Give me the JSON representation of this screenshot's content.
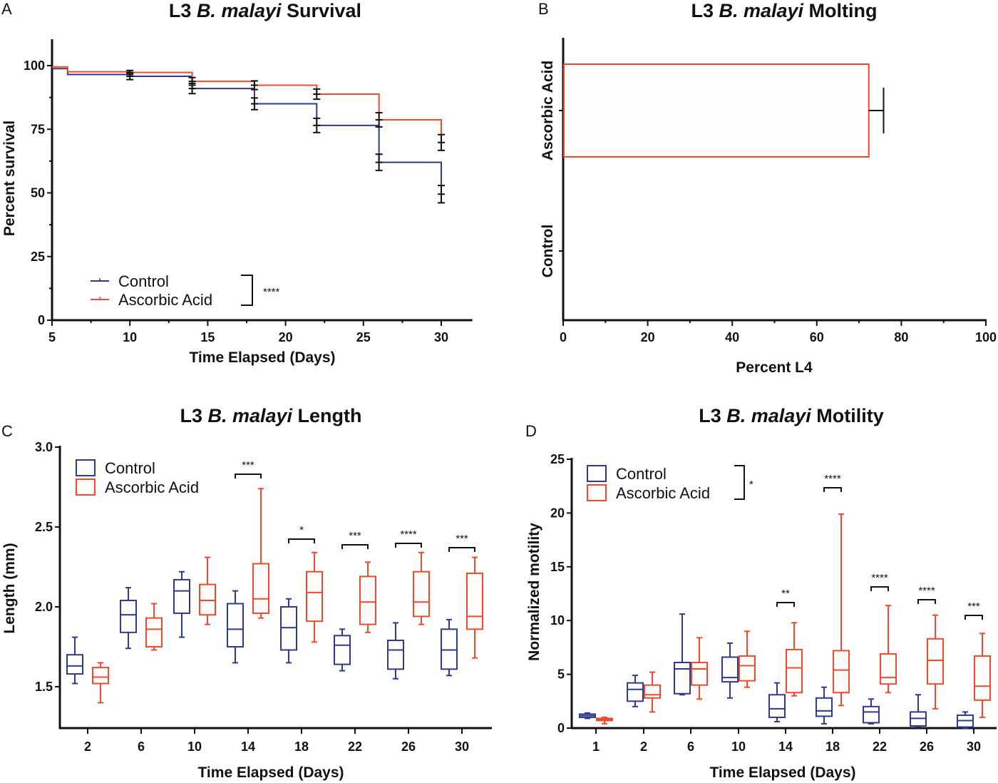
{
  "colors": {
    "control": "#2e3a8c",
    "ascorbic": "#f04a2c",
    "axis": "#111111",
    "error": "#111111"
  },
  "chart_data": [
    {
      "panel": "A",
      "type": "line",
      "title_parts": [
        "L3 ",
        "B. malayi",
        " Survival"
      ],
      "xlabel": "Time Elapsed (Days)",
      "ylabel": "Percent survival",
      "xlim": [
        5,
        32
      ],
      "ylim": [
        0,
        110
      ],
      "xticks": [
        5,
        10,
        15,
        20,
        25,
        30
      ],
      "yticks": [
        0,
        25,
        50,
        75,
        100
      ],
      "legend": {
        "position": "bottom-left",
        "entries": [
          "Control",
          "Ascorbic Acid"
        ],
        "significance": "****"
      },
      "series": [
        {
          "name": "Control",
          "step": true,
          "x": [
            5,
            6,
            10,
            14,
            18,
            22,
            26,
            30
          ],
          "y": [
            98.8,
            96.5,
            95.8,
            91.0,
            85.0,
            76.5,
            62.0,
            49.5
          ],
          "error": [
            null,
            null,
            1.3,
            2.0,
            2.3,
            2.8,
            3.2,
            3.4
          ]
        },
        {
          "name": "Ascorbic Acid",
          "step": true,
          "x": [
            5,
            6,
            10,
            14,
            18,
            22,
            26,
            30
          ],
          "y": [
            99.5,
            97.6,
            97.3,
            93.8,
            92.3,
            88.8,
            78.7,
            69.8
          ],
          "error": [
            null,
            null,
            0.8,
            1.5,
            1.7,
            2.0,
            2.8,
            3.1
          ]
        }
      ]
    },
    {
      "panel": "B",
      "type": "bar",
      "orientation": "horizontal",
      "title_parts": [
        "L3 ",
        "B. malayi",
        " Molting"
      ],
      "xlabel": "Percent L4",
      "ylabel": "",
      "xlim": [
        0,
        100
      ],
      "xticks": [
        0,
        20,
        40,
        60,
        80,
        100
      ],
      "categories": [
        "Ascorbic Acid",
        "Control"
      ],
      "values": [
        72.3,
        0
      ],
      "errors": [
        3.5,
        0
      ]
    },
    {
      "panel": "C",
      "type": "box",
      "title_parts": [
        "L3 ",
        "B. malayi",
        " Length"
      ],
      "xlabel": "Time Elapsed (Days)",
      "ylabel": "Length (mm)",
      "ylim": [
        1.24,
        3.0
      ],
      "yticks": [
        "1.5",
        "2.0",
        "2.5",
        "3.0"
      ],
      "categories": [
        "2",
        "6",
        "10",
        "14",
        "18",
        "22",
        "26",
        "30"
      ],
      "legend": {
        "position": "top-left",
        "entries": [
          "Control",
          "Ascorbic Acid"
        ]
      },
      "significance": [
        "",
        "",
        "",
        "***",
        "*",
        "***",
        "****",
        "***"
      ],
      "series": [
        {
          "name": "Control",
          "boxes": [
            {
              "min": 1.52,
              "q1": 1.58,
              "median": 1.63,
              "q3": 1.7,
              "max": 1.81
            },
            {
              "min": 1.74,
              "q1": 1.84,
              "median": 1.95,
              "q3": 2.04,
              "max": 2.12
            },
            {
              "min": 1.81,
              "q1": 1.96,
              "median": 2.1,
              "q3": 2.17,
              "max": 2.22
            },
            {
              "min": 1.65,
              "q1": 1.75,
              "median": 1.86,
              "q3": 2.02,
              "max": 2.1
            },
            {
              "min": 1.65,
              "q1": 1.73,
              "median": 1.87,
              "q3": 2.0,
              "max": 2.05
            },
            {
              "min": 1.6,
              "q1": 1.64,
              "median": 1.76,
              "q3": 1.82,
              "max": 1.86
            },
            {
              "min": 1.55,
              "q1": 1.61,
              "median": 1.73,
              "q3": 1.79,
              "max": 1.9
            },
            {
              "min": 1.57,
              "q1": 1.61,
              "median": 1.73,
              "q3": 1.86,
              "max": 1.92
            }
          ]
        },
        {
          "name": "Ascorbic Acid",
          "boxes": [
            {
              "min": 1.4,
              "q1": 1.52,
              "median": 1.56,
              "q3": 1.62,
              "max": 1.65
            },
            {
              "min": 1.73,
              "q1": 1.75,
              "median": 1.86,
              "q3": 1.93,
              "max": 2.02
            },
            {
              "min": 1.89,
              "q1": 1.95,
              "median": 2.04,
              "q3": 2.14,
              "max": 2.31
            },
            {
              "min": 1.93,
              "q1": 1.96,
              "median": 2.05,
              "q3": 2.27,
              "max": 2.74
            },
            {
              "min": 1.78,
              "q1": 1.91,
              "median": 2.09,
              "q3": 2.22,
              "max": 2.34
            },
            {
              "min": 1.84,
              "q1": 1.89,
              "median": 2.03,
              "q3": 2.19,
              "max": 2.28
            },
            {
              "min": 1.89,
              "q1": 1.94,
              "median": 2.03,
              "q3": 2.22,
              "max": 2.34
            },
            {
              "min": 1.68,
              "q1": 1.86,
              "median": 1.94,
              "q3": 2.21,
              "max": 2.31
            }
          ]
        }
      ]
    },
    {
      "panel": "D",
      "type": "box",
      "title_parts": [
        "L3 ",
        "B. malayi",
        " Motility"
      ],
      "xlabel": "Time Elapsed (Days)",
      "ylabel": "Normalized motility",
      "ylim": [
        0,
        25
      ],
      "yticks": [
        "0",
        "5",
        "10",
        "15",
        "20",
        "25"
      ],
      "categories": [
        "1",
        "2",
        "6",
        "10",
        "14",
        "18",
        "22",
        "26",
        "30"
      ],
      "legend": {
        "position": "top-left",
        "entries": [
          "Control",
          "Ascorbic Acid"
        ],
        "significance": "*"
      },
      "significance": [
        "",
        "",
        "",
        "",
        "**",
        "****",
        "****",
        "****",
        "***"
      ],
      "series": [
        {
          "name": "Control",
          "boxes": [
            {
              "min": 0.9,
              "q1": 1.0,
              "median": 1.15,
              "q3": 1.3,
              "max": 1.4
            },
            {
              "min": 2.0,
              "q1": 2.5,
              "median": 3.6,
              "q3": 4.2,
              "max": 4.9
            },
            {
              "min": 3.1,
              "q1": 3.2,
              "median": 5.5,
              "q3": 6.1,
              "max": 10.6
            },
            {
              "min": 2.8,
              "q1": 4.3,
              "median": 4.7,
              "q3": 6.6,
              "max": 7.9
            },
            {
              "min": 0.6,
              "q1": 1.0,
              "median": 1.8,
              "q3": 3.1,
              "max": 4.2
            },
            {
              "min": 0.4,
              "q1": 1.1,
              "median": 1.6,
              "q3": 2.8,
              "max": 3.8
            },
            {
              "min": 0.4,
              "q1": 0.5,
              "median": 1.5,
              "q3": 2.0,
              "max": 2.7
            },
            {
              "min": 0.1,
              "q1": 0.2,
              "median": 0.9,
              "q3": 1.5,
              "max": 3.1
            },
            {
              "min": 0.0,
              "q1": 0.1,
              "median": 0.7,
              "q3": 1.2,
              "max": 1.5
            }
          ]
        },
        {
          "name": "Ascorbic Acid",
          "boxes": [
            {
              "min": 0.4,
              "q1": 0.7,
              "median": 0.8,
              "q3": 0.9,
              "max": 1.0
            },
            {
              "min": 1.5,
              "q1": 2.8,
              "median": 3.1,
              "q3": 4.0,
              "max": 5.2
            },
            {
              "min": 2.7,
              "q1": 4.0,
              "median": 5.5,
              "q3": 6.1,
              "max": 8.4
            },
            {
              "min": 3.8,
              "q1": 4.4,
              "median": 5.8,
              "q3": 6.7,
              "max": 9.0
            },
            {
              "min": 3.0,
              "q1": 3.3,
              "median": 5.6,
              "q3": 7.3,
              "max": 9.8
            },
            {
              "min": 2.1,
              "q1": 3.3,
              "median": 5.4,
              "q3": 7.2,
              "max": 19.9
            },
            {
              "min": 3.3,
              "q1": 4.1,
              "median": 4.7,
              "q3": 6.9,
              "max": 11.4
            },
            {
              "min": 1.8,
              "q1": 4.1,
              "median": 6.3,
              "q3": 8.3,
              "max": 10.5
            },
            {
              "min": 1.0,
              "q1": 2.6,
              "median": 3.9,
              "q3": 6.7,
              "max": 8.8
            }
          ]
        }
      ]
    }
  ]
}
